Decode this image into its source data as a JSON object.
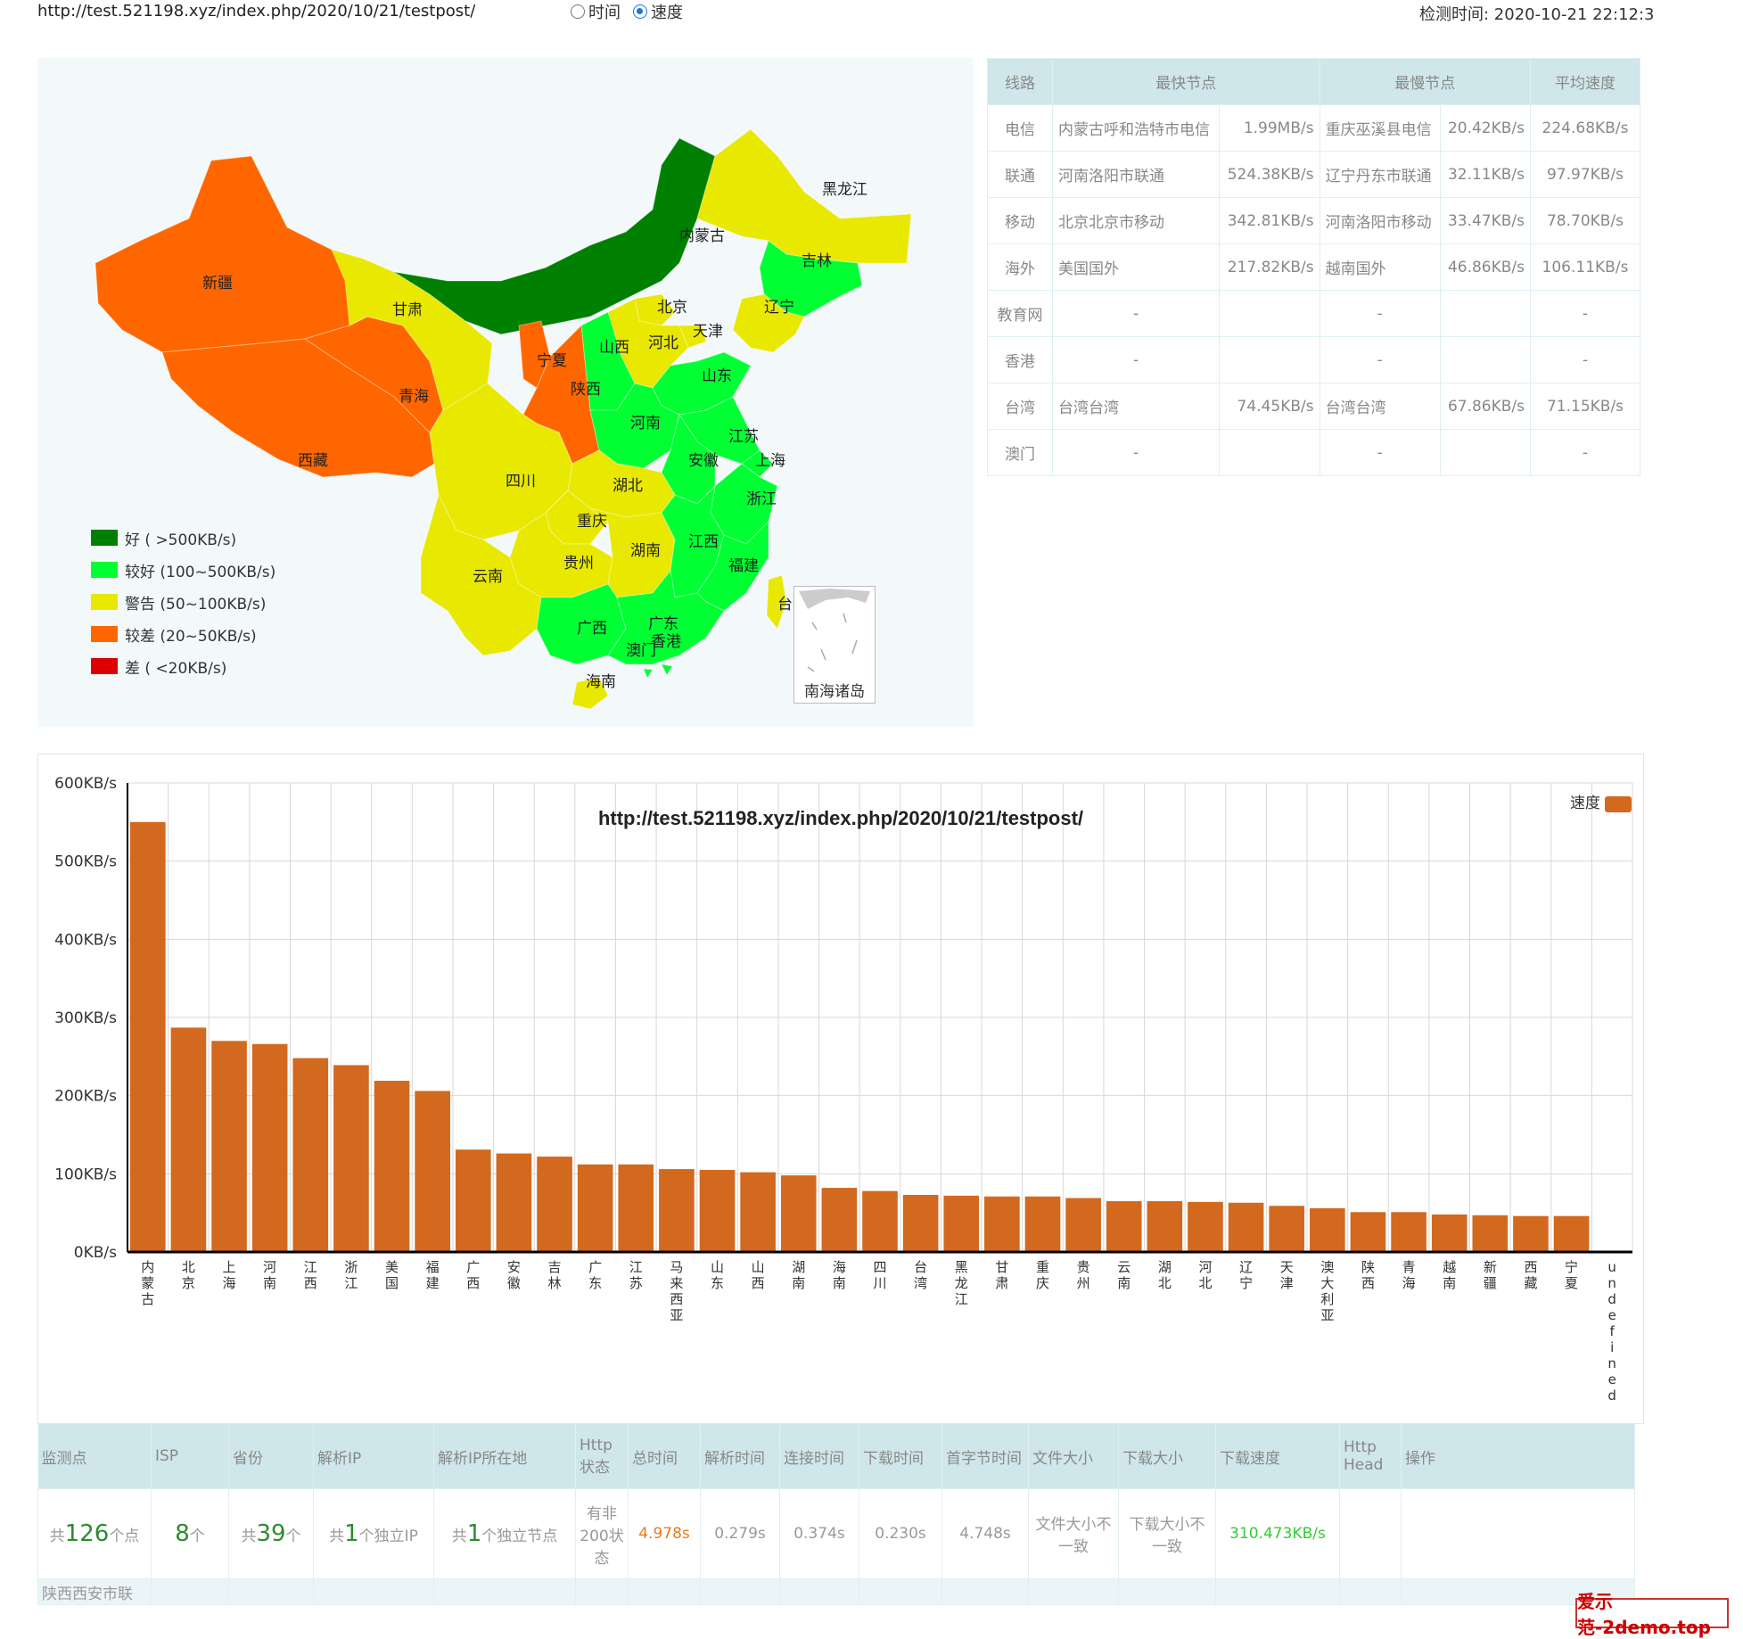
{
  "header": {
    "url": "http://test.521198.xyz/index.php/2020/10/21/testpost/",
    "radio_time": "时间",
    "radio_speed": "速度",
    "check_time": "检测时间:  2020-10-21 22:12:3"
  },
  "map": {
    "provinces": [
      {
        "name": "新疆",
        "color": "#ff6600"
      },
      {
        "name": "西藏",
        "color": "#ff6600"
      },
      {
        "name": "青海",
        "color": "#ff6600"
      },
      {
        "name": "甘肃",
        "color": "#e8e800"
      },
      {
        "name": "内蒙古",
        "color": "#008000"
      },
      {
        "name": "黑龙江",
        "color": "#e8e800"
      },
      {
        "name": "吉林",
        "color": "#00ff33"
      },
      {
        "name": "辽宁",
        "color": "#e8e800"
      },
      {
        "name": "北京",
        "color": "#e8e800"
      },
      {
        "name": "天津",
        "color": "#e8e800"
      },
      {
        "name": "河北",
        "color": "#e8e800"
      },
      {
        "name": "山西",
        "color": "#00ff33"
      },
      {
        "name": "山东",
        "color": "#00ff33"
      },
      {
        "name": "宁夏",
        "color": "#ff6600"
      },
      {
        "name": "陕西",
        "color": "#ff6600"
      },
      {
        "name": "河南",
        "color": "#00ff33"
      },
      {
        "name": "江苏",
        "color": "#00ff33"
      },
      {
        "name": "安徽",
        "color": "#00ff33"
      },
      {
        "name": "上海",
        "color": "#00ff33"
      },
      {
        "name": "湖北",
        "color": "#e8e800"
      },
      {
        "name": "四川",
        "color": "#e8e800"
      },
      {
        "name": "重庆",
        "color": "#e8e800"
      },
      {
        "name": "浙江",
        "color": "#00ff33"
      },
      {
        "name": "贵州",
        "color": "#e8e800"
      },
      {
        "name": "湖南",
        "color": "#e8e800"
      },
      {
        "name": "江西",
        "color": "#00ff33"
      },
      {
        "name": "福建",
        "color": "#00ff33"
      },
      {
        "name": "云南",
        "color": "#e8e800"
      },
      {
        "name": "广西",
        "color": "#00ff33"
      },
      {
        "name": "广东",
        "color": "#00ff33"
      },
      {
        "name": "台湾",
        "color": "#e8e800"
      },
      {
        "name": "香港",
        "color": "#00ff33"
      },
      {
        "name": "澳门",
        "color": "#00ff33"
      },
      {
        "name": "海南",
        "color": "#e8e800"
      }
    ],
    "legend": [
      {
        "label": "好 ( >500KB/s)",
        "color": "#008000"
      },
      {
        "label": "较好 (100~500KB/s)",
        "color": "#00ff33"
      },
      {
        "label": "警告 (50~100KB/s)",
        "color": "#e8e800"
      },
      {
        "label": "较差 (20~50KB/s)",
        "color": "#ff6600"
      },
      {
        "label": "差 ( <20KB/s)",
        "color": "#dd0000"
      }
    ],
    "inset_label": "南海诸岛"
  },
  "stats": {
    "headers": [
      "线路",
      "最快节点",
      "最慢节点",
      "平均速度"
    ],
    "rows": [
      {
        "line": "电信",
        "fast_node": "内蒙古呼和浩特市电信",
        "fast_speed": "1.99MB/s",
        "slow_node": "重庆巫溪县电信",
        "slow_speed": "20.42KB/s",
        "avg": "224.68KB/s"
      },
      {
        "line": "联通",
        "fast_node": "河南洛阳市联通",
        "fast_speed": "524.38KB/s",
        "slow_node": "辽宁丹东市联通",
        "slow_speed": "32.11KB/s",
        "avg": "97.97KB/s"
      },
      {
        "line": "移动",
        "fast_node": "北京北京市移动",
        "fast_speed": "342.81KB/s",
        "slow_node": "河南洛阳市移动",
        "slow_speed": "33.47KB/s",
        "avg": "78.70KB/s"
      },
      {
        "line": "海外",
        "fast_node": "美国国外",
        "fast_speed": "217.82KB/s",
        "slow_node": "越南国外",
        "slow_speed": "46.86KB/s",
        "avg": "106.11KB/s"
      },
      {
        "line": "教育网",
        "fast_node": "-",
        "fast_speed": "",
        "slow_node": "-",
        "slow_speed": "",
        "avg": "-"
      },
      {
        "line": "香港",
        "fast_node": "-",
        "fast_speed": "",
        "slow_node": "-",
        "slow_speed": "",
        "avg": "-"
      },
      {
        "line": "台湾",
        "fast_node": "台湾台湾",
        "fast_speed": "74.45KB/s",
        "slow_node": "台湾台湾",
        "slow_speed": "67.86KB/s",
        "avg": "71.15KB/s"
      },
      {
        "line": "澳门",
        "fast_node": "-",
        "fast_speed": "",
        "slow_node": "-",
        "slow_speed": "",
        "avg": "-"
      }
    ]
  },
  "chart_data": {
    "type": "bar",
    "title": "http://test.521198.xyz/index.php/2020/10/21/testpost/",
    "legend": "速度",
    "bar_color": "#d2691e",
    "ylim": [
      0,
      600
    ],
    "yticks": [
      "0KB/s",
      "100KB/s",
      "200KB/s",
      "300KB/s",
      "400KB/s",
      "500KB/s",
      "600KB/s"
    ],
    "categories": [
      "内蒙古",
      "北京",
      "上海",
      "河南",
      "江西",
      "浙江",
      "美国",
      "福建",
      "广西",
      "安徽",
      "吉林",
      "广东",
      "江苏",
      "马来西亚",
      "山东",
      "山西",
      "湖南",
      "海南",
      "四川",
      "台湾",
      "黑龙江",
      "甘肃",
      "重庆",
      "贵州",
      "云南",
      "湖北",
      "河北",
      "辽宁",
      "天津",
      "澳大利亚",
      "陕西",
      "青海",
      "越南",
      "新疆",
      "西藏",
      "宁夏",
      "undefined"
    ],
    "values": [
      550,
      287,
      270,
      266,
      248,
      239,
      219,
      206,
      131,
      126,
      122,
      112,
      112,
      106,
      105,
      102,
      98,
      82,
      78,
      73,
      72,
      71,
      71,
      69,
      65,
      65,
      64,
      63,
      59,
      56,
      51,
      51,
      48,
      47,
      46,
      46,
      0
    ],
    "grid": true,
    "legend_position": "top-right"
  },
  "summary": {
    "headers": [
      "监测点",
      "ISP",
      "省份",
      "解析IP",
      "解析IP所在地",
      "Http状态",
      "总时间",
      "解析时间",
      "连接时间",
      "下载时间",
      "首字节时间",
      "文件大小",
      "下载大小",
      "下载速度",
      "Http Head",
      "操作"
    ],
    "points_prefix": "共",
    "points_value": "126",
    "points_suffix": "个点",
    "isp_value": "8",
    "isp_suffix": "个",
    "prov_prefix": "共",
    "prov_value": "39",
    "prov_suffix": "个",
    "ip_prefix": "共",
    "ip_value": "1",
    "ip_suffix": "个独立IP",
    "loc_prefix": "共",
    "loc_value": "1",
    "loc_suffix": "个独立节点",
    "http_status": "有非200状态",
    "total_time": "4.978s",
    "dns_time": "0.279s",
    "connect_time": "0.374s",
    "download_time": "0.230s",
    "ttfb": "4.748s",
    "file_size": "文件大小不一致",
    "download_size": "下载大小不一致",
    "download_speed": "310.473KB/s",
    "next_row_first": "陕西西安市联"
  },
  "watermark": "爱示范-2demo.top"
}
